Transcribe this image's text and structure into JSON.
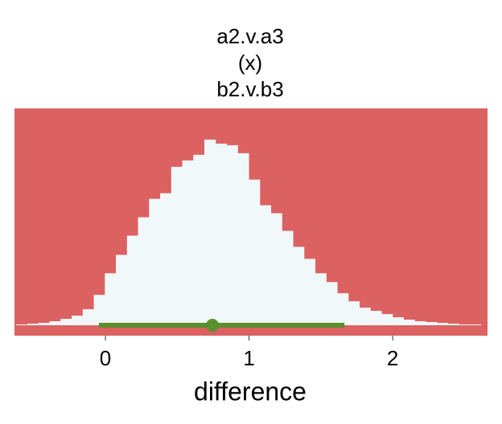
{
  "chart_data": {
    "type": "histogram",
    "title_lines": [
      "a2.v.a3",
      "(x)",
      "b2.v.b3"
    ],
    "xlabel": "difference",
    "bins": [
      -0.62,
      -0.543,
      -0.466,
      -0.389,
      -0.312,
      -0.235,
      -0.158,
      -0.081,
      -0.004,
      0.073,
      0.15,
      0.227,
      0.304,
      0.381,
      0.458,
      0.535,
      0.612,
      0.689,
      0.766,
      0.843,
      0.92,
      0.997,
      1.074,
      1.151,
      1.228,
      1.305,
      1.382,
      1.459,
      1.536,
      1.613,
      1.69,
      1.767,
      1.844,
      1.921,
      1.998,
      2.075,
      2.152,
      2.229,
      2.306,
      2.383,
      2.46,
      2.537,
      2.614
    ],
    "values": [
      1,
      2,
      3,
      5,
      8,
      12,
      20,
      38,
      65,
      88,
      112,
      135,
      158,
      165,
      198,
      206,
      213,
      232,
      227,
      225,
      215,
      182,
      150,
      140,
      118,
      98,
      83,
      65,
      54,
      40,
      30,
      22,
      18,
      14,
      10,
      7,
      5,
      4,
      3,
      2,
      1,
      1
    ],
    "color": "#f0f8fa",
    "panel_color": "#dc6161",
    "interval": {
      "point": 0.745,
      "lower": -0.045,
      "upper": 1.664,
      "color": "#5a8f2e"
    },
    "xlim": [
      -0.633,
      2.66
    ],
    "ylim": [
      -13,
      271
    ],
    "xticks": [
      0,
      1,
      2
    ]
  }
}
